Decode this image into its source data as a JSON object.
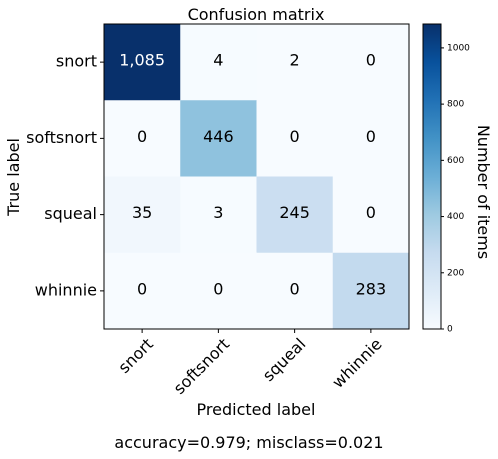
{
  "chart_data": {
    "type": "heatmap",
    "title": "Confusion matrix",
    "xlabel": "Predicted label",
    "ylabel": "True label",
    "x_categories": [
      "snort",
      "softsnort",
      "squeal",
      "whinnie"
    ],
    "y_categories": [
      "snort",
      "softsnort",
      "squeal",
      "whinnie"
    ],
    "cell_labels": [
      [
        "1,085",
        "4",
        "2",
        "0"
      ],
      [
        "0",
        "446",
        "0",
        "0"
      ],
      [
        "35",
        "3",
        "245",
        "0"
      ],
      [
        "0",
        "0",
        "0",
        "283"
      ]
    ],
    "values": [
      [
        1085,
        4,
        2,
        0
      ],
      [
        0,
        446,
        0,
        0
      ],
      [
        35,
        3,
        245,
        0
      ],
      [
        0,
        0,
        0,
        283
      ]
    ],
    "colorbar": {
      "label": "Number of items",
      "range": [
        0,
        1085
      ],
      "ticks": [
        0,
        200,
        400,
        600,
        800,
        1000
      ],
      "colormap": "Blues"
    },
    "footer": "accuracy=0.979; misclass=0.021"
  }
}
